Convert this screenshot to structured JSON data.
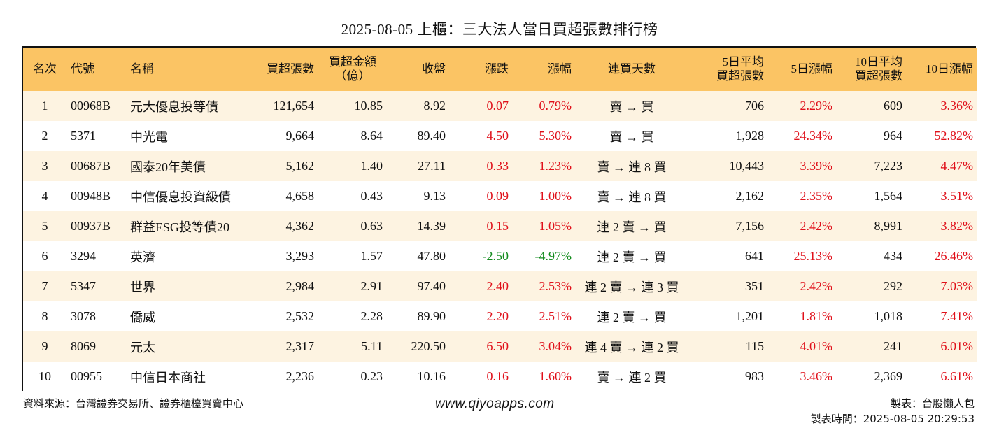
{
  "title": "2025-08-05 上櫃：三大法人當日買超張數排行榜",
  "headers": {
    "rank": "名次",
    "code": "代號",
    "name": "名稱",
    "buy_lots": "買超張數",
    "buy_amount_1": "買超金額",
    "buy_amount_2": "（億）",
    "close": "收盤",
    "change": "漲跌",
    "pct": "漲幅",
    "streak": "連買天數",
    "avg5_1": "5日平均",
    "avg5_2": "買超張數",
    "pct5": "5日漲幅",
    "avg10_1": "10日平均",
    "avg10_2": "買超張數",
    "pct10": "10日漲幅"
  },
  "rows": [
    {
      "rank": "1",
      "code": "00968B",
      "name": "元大優息投等債",
      "buy_lots": "121,654",
      "amount": "10.85",
      "close": "8.92",
      "change": "0.07",
      "pct": "0.79%",
      "dir": "up",
      "streak": "賣 → 買",
      "avg5": "706",
      "pct5": "2.29%",
      "avg10": "609",
      "pct10": "3.36%"
    },
    {
      "rank": "2",
      "code": "5371",
      "name": "中光電",
      "buy_lots": "9,664",
      "amount": "8.64",
      "close": "89.40",
      "change": "4.50",
      "pct": "5.30%",
      "dir": "up",
      "streak": "賣 → 買",
      "avg5": "1,928",
      "pct5": "24.34%",
      "avg10": "964",
      "pct10": "52.82%"
    },
    {
      "rank": "3",
      "code": "00687B",
      "name": "國泰20年美債",
      "buy_lots": "5,162",
      "amount": "1.40",
      "close": "27.11",
      "change": "0.33",
      "pct": "1.23%",
      "dir": "up",
      "streak": "賣 → 連 8 買",
      "avg5": "10,443",
      "pct5": "3.39%",
      "avg10": "7,223",
      "pct10": "4.47%"
    },
    {
      "rank": "4",
      "code": "00948B",
      "name": "中信優息投資級債",
      "buy_lots": "4,658",
      "amount": "0.43",
      "close": "9.13",
      "change": "0.09",
      "pct": "1.00%",
      "dir": "up",
      "streak": "賣 → 連 8 買",
      "avg5": "2,162",
      "pct5": "2.35%",
      "avg10": "1,564",
      "pct10": "3.51%"
    },
    {
      "rank": "5",
      "code": "00937B",
      "name": "群益ESG投等債20",
      "buy_lots": "4,362",
      "amount": "0.63",
      "close": "14.39",
      "change": "0.15",
      "pct": "1.05%",
      "dir": "up",
      "streak": "連 2 賣 → 買",
      "avg5": "7,156",
      "pct5": "2.42%",
      "avg10": "8,991",
      "pct10": "3.82%"
    },
    {
      "rank": "6",
      "code": "3294",
      "name": "英濟",
      "buy_lots": "3,293",
      "amount": "1.57",
      "close": "47.80",
      "change": "-2.50",
      "pct": "-4.97%",
      "dir": "down",
      "streak": "連 2 賣 → 買",
      "avg5": "641",
      "pct5": "25.13%",
      "avg10": "434",
      "pct10": "26.46%"
    },
    {
      "rank": "7",
      "code": "5347",
      "name": "世界",
      "buy_lots": "2,984",
      "amount": "2.91",
      "close": "97.40",
      "change": "2.40",
      "pct": "2.53%",
      "dir": "up",
      "streak": "連 2 賣 → 連 3 買",
      "avg5": "351",
      "pct5": "2.42%",
      "avg10": "292",
      "pct10": "7.03%"
    },
    {
      "rank": "8",
      "code": "3078",
      "name": "僑威",
      "buy_lots": "2,532",
      "amount": "2.28",
      "close": "89.90",
      "change": "2.20",
      "pct": "2.51%",
      "dir": "up",
      "streak": "連 2 賣 → 買",
      "avg5": "1,201",
      "pct5": "1.81%",
      "avg10": "1,018",
      "pct10": "7.41%"
    },
    {
      "rank": "9",
      "code": "8069",
      "name": "元太",
      "buy_lots": "2,317",
      "amount": "5.11",
      "close": "220.50",
      "change": "6.50",
      "pct": "3.04%",
      "dir": "up",
      "streak": "連 4 賣 → 連 2 買",
      "avg5": "115",
      "pct5": "4.01%",
      "avg10": "241",
      "pct10": "6.01%"
    },
    {
      "rank": "10",
      "code": "00955",
      "name": "中信日本商社",
      "buy_lots": "2,236",
      "amount": "0.23",
      "close": "10.16",
      "change": "0.16",
      "pct": "1.60%",
      "dir": "up",
      "streak": "賣 → 連 2 買",
      "avg5": "983",
      "pct5": "3.46%",
      "avg10": "2,369",
      "pct10": "6.61%"
    }
  ],
  "footer": {
    "source": "資料來源：台灣證券交易所、證券櫃檯買賣中心",
    "website": "www.qiyoapps.com",
    "maker": "製表：台股懶人包",
    "time": "製表時間：2025-08-05 20:29:53"
  },
  "colors": {
    "header_bg": "#fbc464",
    "row_alt_bg": "#fdf3e1",
    "up": "#e0101a",
    "down": "#118a1c"
  }
}
